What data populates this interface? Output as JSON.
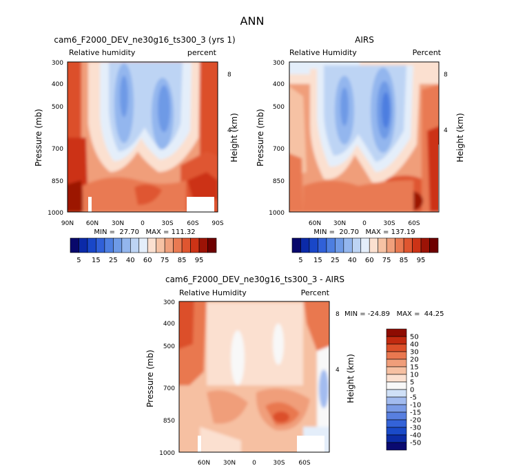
{
  "figure": {
    "title": "ANN"
  },
  "chart_data": [
    {
      "type": "heatmap",
      "title": "cam6_F2000_DEV_ne30g16_ts300_3 (yrs 1)",
      "left_label": "Relative humidity",
      "right_label": "percent",
      "ylabel": "Pressure (mb)",
      "y2label": "Height (km)",
      "y_ticks": [
        "300",
        "400",
        "500",
        "700",
        "850",
        "1000"
      ],
      "y2_ticks": [
        "8",
        "4"
      ],
      "x_ticks": [
        "90N",
        "60N",
        "30N",
        "0",
        "30S",
        "60S",
        "90S"
      ],
      "xlim": [
        "90N",
        "90S"
      ],
      "ylim": [
        1000,
        300
      ],
      "stats": "MIN =  27.70   MAX = 111.32",
      "levels": [
        5,
        10,
        15,
        20,
        25,
        30,
        40,
        50,
        60,
        65,
        70,
        75,
        80,
        85,
        90,
        95
      ],
      "colorbar_labels": [
        "5",
        "15",
        "25",
        "40",
        "60",
        "75",
        "85",
        "95"
      ]
    },
    {
      "type": "heatmap",
      "title": "AIRS",
      "left_label": "Relative Humidity",
      "right_label": "Percent",
      "ylabel": "Pressure (mb)",
      "y2label": "Height (km)",
      "y_ticks": [
        "300",
        "400",
        "500",
        "700",
        "850",
        "1000"
      ],
      "y2_ticks": [
        "8",
        "4"
      ],
      "x_ticks": [
        "60N",
        "30N",
        "0",
        "30S",
        "60S"
      ],
      "ylim": [
        1000,
        300
      ],
      "stats": "MIN =  20.70   MAX = 137.19",
      "levels": [
        5,
        10,
        15,
        20,
        25,
        30,
        40,
        50,
        60,
        65,
        70,
        75,
        80,
        85,
        90,
        95
      ],
      "colorbar_labels": [
        "5",
        "15",
        "25",
        "40",
        "60",
        "75",
        "85",
        "95"
      ]
    },
    {
      "type": "heatmap",
      "title": "cam6_F2000_DEV_ne30g16_ts300_3 - AIRS",
      "left_label": "Relative Humidity",
      "right_label": "Percent",
      "ylabel": "Pressure (mb)",
      "y2label": "Height (km)",
      "y_ticks": [
        "300",
        "400",
        "500",
        "700",
        "850",
        "1000"
      ],
      "y2_ticks": [
        "8",
        "4"
      ],
      "x_ticks": [
        "60N",
        "30N",
        "0",
        "30S",
        "60S"
      ],
      "ylim": [
        1000,
        300
      ],
      "stats": "MIN = -24.89   MAX =  44.25",
      "levels": [
        -50,
        -40,
        -30,
        -20,
        -15,
        -10,
        -5,
        0,
        5,
        10,
        15,
        20,
        30,
        40,
        50
      ],
      "colorbar_labels": [
        "50",
        "40",
        "30",
        "20",
        "15",
        "10",
        "5",
        "0",
        "-5",
        "-10",
        "-15",
        "-20",
        "-30",
        "-40",
        "-50"
      ]
    }
  ],
  "colors": {
    "seq": [
      "#08086b",
      "#0b2aa8",
      "#1947c8",
      "#3060d8",
      "#4d7ee0",
      "#6e9ae6",
      "#93b6ee",
      "#bdd4f4",
      "#e4eefa",
      "#fbe0d0",
      "#f6c2a4",
      "#f0a07c",
      "#e97a52",
      "#df5630",
      "#cc3316",
      "#9c1306",
      "#6e0000"
    ],
    "div": [
      "#0a0a70",
      "#0c2ca6",
      "#1a4ac8",
      "#3463d8",
      "#587fe0",
      "#7a9be6",
      "#a2bbef",
      "#cfe0f7",
      "#f8f8f8",
      "#fbe0d0",
      "#f6c0a2",
      "#f09e7a",
      "#e97850",
      "#dc502a",
      "#c22a10",
      "#8e0c02"
    ]
  }
}
